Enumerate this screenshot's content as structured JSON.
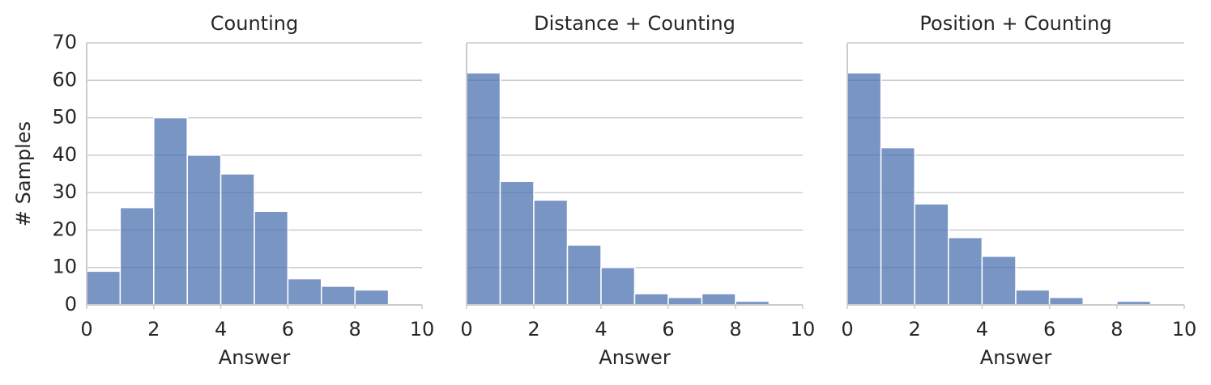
{
  "chart_data": [
    {
      "type": "histogram",
      "title": "Counting",
      "xlabel": "Answer",
      "ylabel": "# Samples",
      "bins": [
        0,
        1,
        2,
        3,
        4,
        5,
        6,
        7,
        8,
        9,
        10
      ],
      "values": [
        9,
        26,
        50,
        40,
        35,
        25,
        7,
        5,
        4,
        0
      ],
      "color": "#4c72b0",
      "xlim": [
        0,
        10
      ],
      "xticks": [
        0,
        2,
        4,
        6,
        8,
        10
      ],
      "ylim": [
        0,
        70
      ],
      "yticks": [
        0,
        10,
        20,
        30,
        40,
        50,
        60,
        70
      ],
      "grid": true
    },
    {
      "type": "histogram",
      "title": "Distance + Counting",
      "xlabel": "Answer",
      "bins": [
        0,
        1,
        2,
        3,
        4,
        5,
        6,
        7,
        8,
        9,
        10
      ],
      "values": [
        62,
        33,
        28,
        16,
        10,
        3,
        2,
        3,
        1,
        0
      ],
      "color": "#4c72b0",
      "xlim": [
        0,
        10
      ],
      "xticks": [
        0,
        2,
        4,
        6,
        8,
        10
      ],
      "ylim": [
        0,
        70
      ],
      "grid": true
    },
    {
      "type": "histogram",
      "title": "Position + Counting",
      "xlabel": "Answer",
      "bins": [
        0,
        1,
        2,
        3,
        4,
        5,
        6,
        7,
        8,
        9,
        10
      ],
      "values": [
        62,
        42,
        27,
        18,
        13,
        4,
        2,
        0,
        1,
        0
      ],
      "color": "#4c72b0",
      "xlim": [
        0,
        10
      ],
      "xticks": [
        0,
        2,
        4,
        6,
        8,
        10
      ],
      "ylim": [
        0,
        70
      ],
      "grid": true
    }
  ]
}
